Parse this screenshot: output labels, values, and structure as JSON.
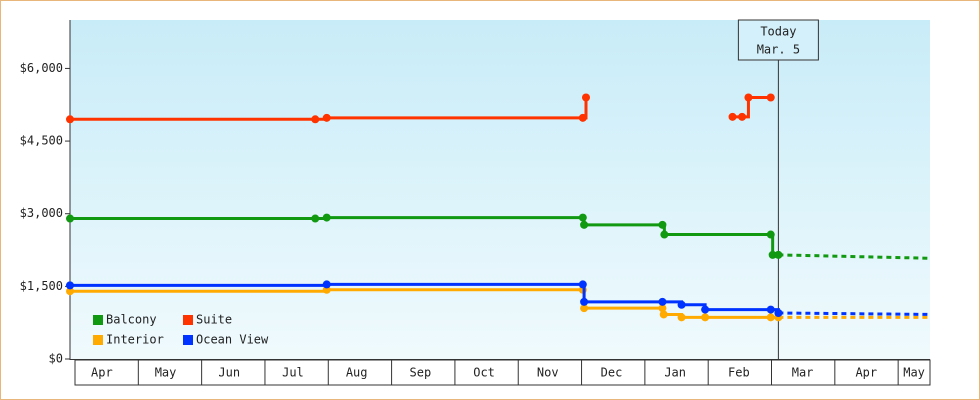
{
  "chart_data": {
    "type": "step-line",
    "xlim": [
      0,
      13.5
    ],
    "xticks": [
      {
        "value": 0.5,
        "label": "Apr"
      },
      {
        "value": 1.5,
        "label": "May"
      },
      {
        "value": 2.5,
        "label": "Jun"
      },
      {
        "value": 3.5,
        "label": "Jul"
      },
      {
        "value": 4.5,
        "label": "Aug"
      },
      {
        "value": 5.5,
        "label": "Sep"
      },
      {
        "value": 6.5,
        "label": "Oct"
      },
      {
        "value": 7.5,
        "label": "Nov"
      },
      {
        "value": 8.5,
        "label": "Dec"
      },
      {
        "value": 9.5,
        "label": "Jan"
      },
      {
        "value": 10.5,
        "label": "Feb"
      },
      {
        "value": 11.5,
        "label": "Mar"
      },
      {
        "value": 12.5,
        "label": "Apr"
      },
      {
        "value": 13.25,
        "label": "May"
      }
    ],
    "ylim": [
      0,
      7000
    ],
    "yticks": [
      {
        "value": 0,
        "label": "$0"
      },
      {
        "value": 1500,
        "label": "$1,500"
      },
      {
        "value": 3000,
        "label": "$3,000"
      },
      {
        "value": 4500,
        "label": "$4,500"
      },
      {
        "value": 6000,
        "label": "$6,000"
      }
    ],
    "annotation": {
      "x": 11.12,
      "lines": [
        "Today",
        "Mar. 5"
      ]
    },
    "legend": "lower-left",
    "series": [
      {
        "name": "Balcony",
        "color": "#119911",
        "x": [
          0,
          3.85,
          4.03,
          8.05,
          8.07,
          9.3,
          9.33,
          11.0,
          11.03,
          11.12
        ],
        "values": [
          2900,
          2900,
          2920,
          2920,
          2770,
          2770,
          2570,
          2570,
          2150,
          2150
        ],
        "forecast": {
          "x": [
            11.12,
            13.5
          ],
          "values": [
            2150,
            2080
          ]
        }
      },
      {
        "name": "Suite",
        "color": "#ff3300",
        "x": [
          0,
          3.85,
          4.03,
          8.05,
          8.1,
          null,
          10.4,
          10.55,
          10.65,
          11.0
        ],
        "values": [
          4950,
          4950,
          4980,
          4980,
          5400,
          null,
          5000,
          5000,
          5400,
          5400
        ]
      },
      {
        "name": "Interior",
        "color": "#ffaa00",
        "x": [
          0,
          4.03,
          8.05,
          8.07,
          9.3,
          9.32,
          9.6,
          9.97,
          11.0,
          11.12
        ],
        "values": [
          1400,
          1430,
          1430,
          1050,
          1050,
          920,
          860,
          860,
          860,
          860
        ],
        "forecast": {
          "x": [
            11.12,
            13.5
          ],
          "values": [
            860,
            860
          ]
        }
      },
      {
        "name": "Ocean View",
        "color": "#0033ff",
        "x": [
          0,
          4.03,
          8.05,
          8.07,
          9.3,
          9.6,
          9.97,
          11.0,
          11.12
        ],
        "values": [
          1520,
          1540,
          1540,
          1180,
          1180,
          1120,
          1020,
          1020,
          950
        ],
        "forecast": {
          "x": [
            11.12,
            13.5
          ],
          "values": [
            950,
            920
          ]
        }
      }
    ]
  }
}
